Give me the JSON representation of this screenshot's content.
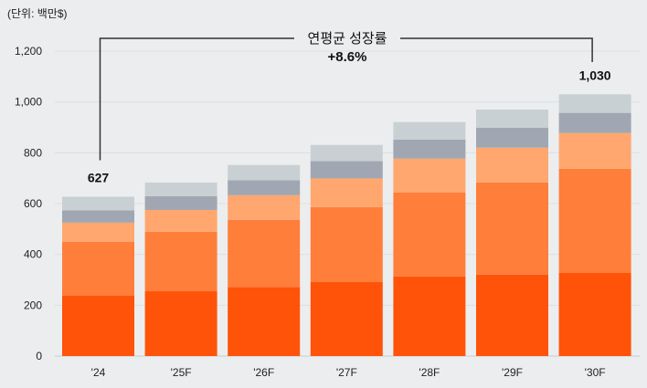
{
  "chart_data": {
    "type": "bar",
    "stacked": true,
    "unit_label": "(단위: 백만$)",
    "categories": [
      "'24",
      "'25F",
      "'26F",
      "'27F",
      "'28F",
      "'29F",
      "'30F"
    ],
    "series": [
      {
        "values": [
          237,
          255,
          272,
          291,
          313,
          320,
          327
        ],
        "color": "#FF5309"
      },
      {
        "values": [
          213,
          234,
          264,
          295,
          331,
          363,
          410
        ],
        "color": "#FF7E3A"
      },
      {
        "values": [
          75,
          86,
          97,
          113,
          133,
          137,
          141
        ],
        "color": "#FFA76E"
      },
      {
        "values": [
          48,
          54,
          59,
          68,
          75,
          79,
          79
        ],
        "color": "#A0A7B2"
      },
      {
        "values": [
          54,
          54,
          60,
          64,
          69,
          71,
          73
        ],
        "color": "#C9D0D3"
      }
    ],
    "ylim": [
      0,
      1200
    ],
    "yticks": [
      0,
      200,
      400,
      600,
      800,
      1000,
      1200
    ],
    "ytick_labels": [
      "0",
      "200",
      "400",
      "600",
      "800",
      "1,000",
      "1,200"
    ],
    "grid": true,
    "data_labels": [
      {
        "category": "'24",
        "text": "627"
      },
      {
        "category": "'30F",
        "text": "1,030"
      }
    ],
    "annotation": {
      "title": "연평균 성장률",
      "value": "+8.6%",
      "from": "'24",
      "to": "'30F"
    }
  }
}
